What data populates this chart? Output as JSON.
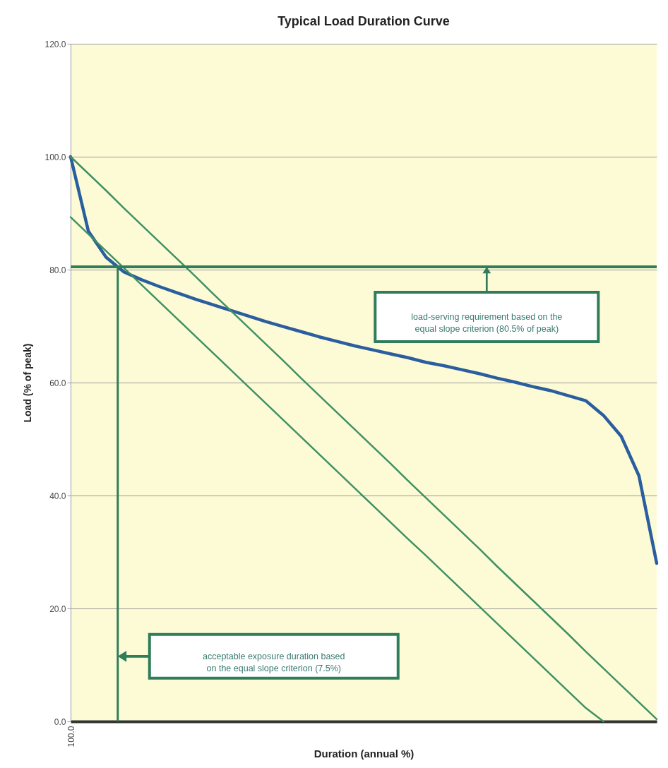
{
  "chart_data": {
    "type": "line",
    "title": "Typical Load Duration Curve",
    "xlabel": "Duration (annual %)",
    "ylabel": "Load (% of peak)",
    "categories": [
      "100.0",
      null,
      null,
      null,
      null,
      null,
      null,
      null,
      null,
      null,
      null,
      null,
      null,
      null,
      null,
      null,
      null,
      null,
      null,
      null,
      null,
      null,
      null,
      null,
      null,
      null,
      null,
      null,
      null,
      null,
      null,
      null,
      null,
      null
    ],
    "ylim": [
      0,
      120
    ],
    "yticks": [
      {
        "value": 0,
        "label": "0.0"
      },
      {
        "value": 20,
        "label": "20.0"
      },
      {
        "value": 40,
        "label": "40.0"
      },
      {
        "value": 60,
        "label": "60.0"
      },
      {
        "value": 80,
        "label": "80.0"
      },
      {
        "value": 100,
        "label": "100.0"
      },
      {
        "value": 120,
        "label": "120.0"
      }
    ],
    "grid": "y",
    "series": [
      {
        "color": "#2b5e9e",
        "values": [
          100,
          86.8,
          82.2,
          79.6,
          78.2,
          77,
          75.9,
          74.8,
          73.8,
          72.8,
          71.8,
          70.8,
          69.9,
          69,
          68.1,
          67.3,
          66.5,
          65.8,
          65.1,
          64.4,
          63.6,
          63,
          62.3,
          61.6,
          60.8,
          60.1,
          59.3,
          58.6,
          57.7,
          56.8,
          54.2,
          50.5,
          43.5,
          28
        ]
      },
      {
        "color": "#3f9163",
        "values": [
          100,
          97,
          94,
          90.9,
          87.9,
          84.9,
          81.9,
          78.9,
          75.8,
          72.8,
          69.8,
          66.8,
          63.8,
          60.7,
          57.7,
          54.7,
          51.7,
          48.7,
          45.7,
          42.6,
          39.6,
          36.6,
          33.6,
          30.6,
          27.5,
          24.5,
          21.5,
          18.5,
          15.5,
          12.4,
          9.4,
          6.4,
          3.4,
          0.4
        ]
      },
      {
        "color": "#3f9163",
        "values": [
          89.3,
          86.3,
          83.3,
          80.3,
          77.3,
          74.3,
          71.3,
          68.3,
          65.3,
          62.3,
          59.3,
          56.3,
          53.3,
          50.3,
          47.3,
          44.3,
          41.3,
          38.3,
          35.3,
          32.3,
          29.4,
          26.4,
          23.4,
          20.4,
          17.4,
          14.4,
          11.4,
          8.4,
          5.4,
          2.4,
          0,
          null,
          null,
          null
        ]
      }
    ],
    "ref_lines": [
      {
        "axis": "y",
        "value": 80.5,
        "color": "#2f7d5a"
      }
    ],
    "annotations": [
      "load-serving requirement based on the equal slope criterion (80.5% of peak)",
      "acceptable exposure duration based on the equal slope criterion (7.5%)"
    ]
  }
}
